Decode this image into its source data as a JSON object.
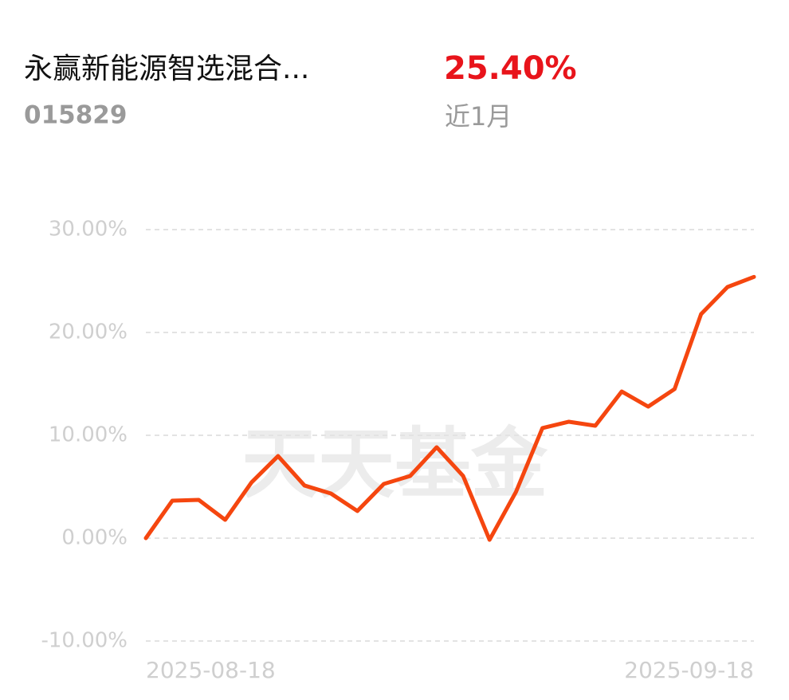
{
  "header": {
    "title": "永赢新能源智选混合...",
    "code": "015829",
    "return": "25.40%",
    "period": "近1月"
  },
  "chart_data": {
    "type": "line",
    "watermark": "天天基金",
    "categories": [
      "2025-08-18",
      null,
      null,
      null,
      null,
      null,
      null,
      null,
      null,
      null,
      null,
      null,
      null,
      null,
      null,
      null,
      null,
      null,
      null,
      null,
      null,
      null,
      null,
      "2025-09-18"
    ],
    "series": [
      {
        "name": "永赢新能源智选混合...",
        "color": "#f5460f",
        "values": [
          0,
          3.64,
          3.72,
          1.78,
          5.43,
          7.98,
          5.12,
          4.34,
          2.64,
          5.27,
          6.05,
          8.84,
          6.05,
          -0.16,
          4.5,
          10.7,
          11.32,
          10.93,
          14.26,
          12.79,
          14.5,
          21.78,
          24.42,
          25.4
        ]
      }
    ],
    "ylim": [
      -10,
      30
    ],
    "yticks": [
      {
        "value": -10,
        "label": "-10.00%"
      },
      {
        "value": 0,
        "label": "0.00%"
      },
      {
        "value": 10,
        "label": "10.00%"
      },
      {
        "value": 20,
        "label": "20.00%"
      },
      {
        "value": 30,
        "label": "30.00%"
      }
    ],
    "grid": true
  }
}
